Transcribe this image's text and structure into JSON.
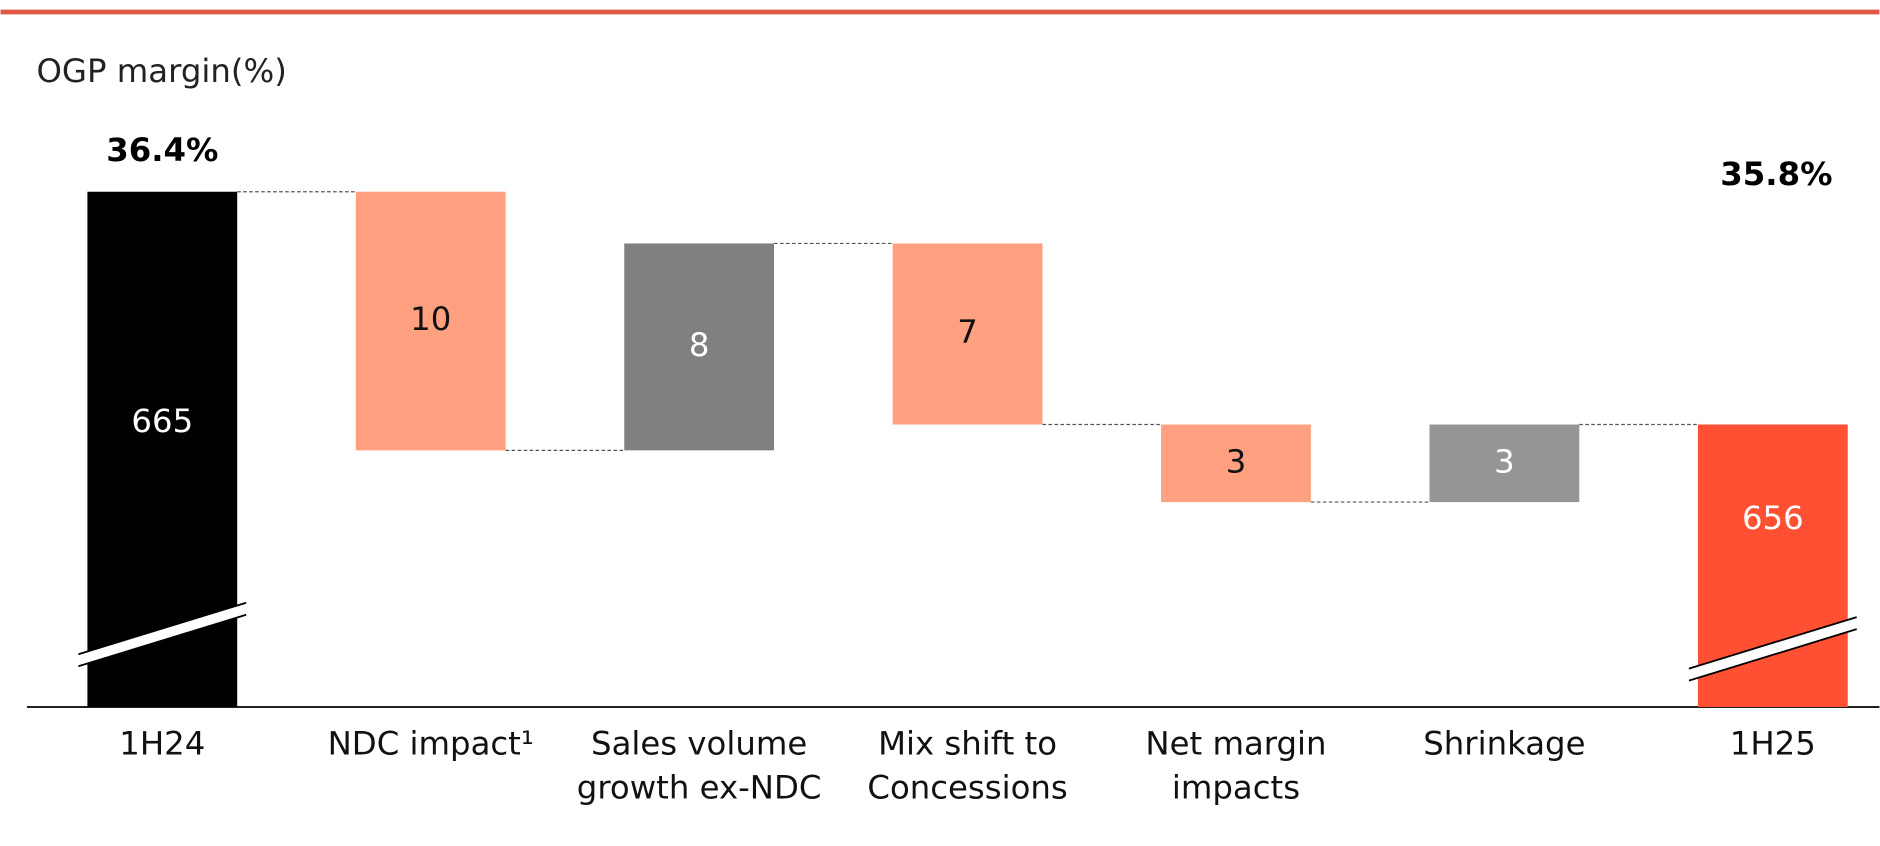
{
  "chart_data": {
    "type": "waterfall",
    "title": "OGP margin(%)",
    "categories": [
      "1H24",
      "NDC impact¹",
      "Sales volume growth ex-NDC",
      "Mix shift to Concessions",
      "Net margin impacts",
      "Shrinkage",
      "1H25"
    ],
    "measure": [
      "total",
      "relative",
      "relative",
      "relative",
      "relative",
      "relative",
      "total"
    ],
    "values": [
      665,
      -10,
      8,
      -7,
      -3,
      3,
      656
    ],
    "value_labels": [
      "665",
      "10",
      "8",
      "7",
      "3",
      "3",
      "656"
    ],
    "colors": [
      "#000000",
      "#ffa080",
      "#808080",
      "#ffa080",
      "#ffa080",
      "#969696",
      "#ff5033"
    ],
    "annotations": [
      "36.4%",
      "35.8%"
    ]
  }
}
